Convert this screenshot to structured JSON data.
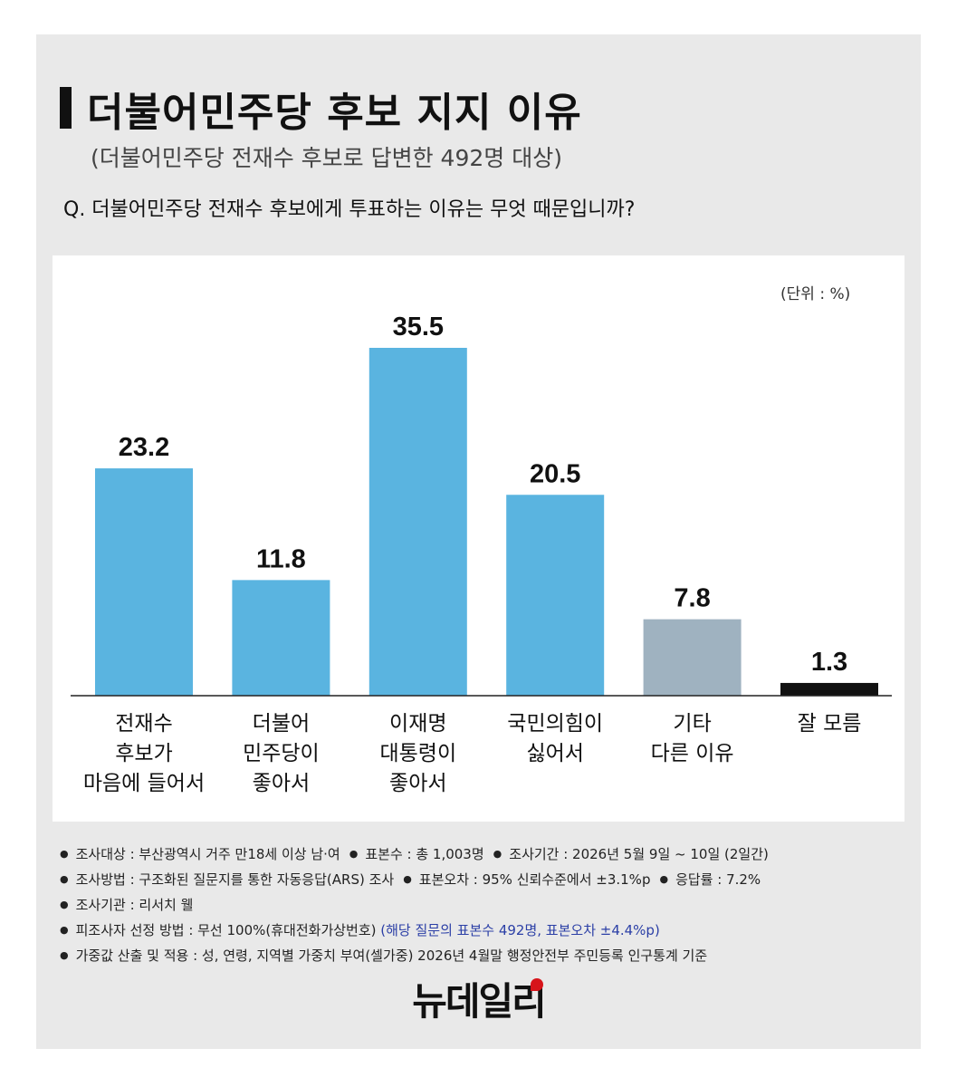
{
  "title": "더불어민주당 후보 지지 이유",
  "subtitle": "(더불어민주당 전재수 후보로 답변한 492명 대상)",
  "question": "Q. 더불어민주당 전재수 후보에게 투표하는 이유는 무엇 때문입니까?",
  "unit_label": "(단위 : %)",
  "chart_data": {
    "type": "bar",
    "title": "더불어민주당 후보 지지 이유",
    "categories": [
      [
        "전재수",
        "후보가",
        "마음에 들어서"
      ],
      [
        "더불어",
        "민주당이",
        "좋아서"
      ],
      [
        "이재명",
        "대통령이",
        "좋아서"
      ],
      [
        "국민의힘이",
        "싫어서"
      ],
      [
        "기타",
        "다른 이유"
      ],
      [
        "잘 모름"
      ]
    ],
    "values": [
      23.2,
      11.8,
      35.5,
      20.5,
      7.8,
      1.3
    ],
    "value_labels": [
      "23.2",
      "11.8",
      "35.5",
      "20.5",
      "7.8",
      "1.3"
    ],
    "colors": [
      "#5ab4e0",
      "#5ab4e0",
      "#5ab4e0",
      "#5ab4e0",
      "#9fb2c0",
      "#111111"
    ],
    "ylim": [
      0,
      35.5
    ],
    "grid": false,
    "legend": "none",
    "xlabel": "",
    "ylabel": ""
  },
  "notes": [
    [
      {
        "text": "조사대상 : 부산광역시 거주 만18세 이상 남·여"
      },
      {
        "text": "표본수 : 총 1,003명"
      },
      {
        "text": "조사기간 : 2026년 5월 9일 ~ 10일 (2일간)"
      }
    ],
    [
      {
        "text": "조사방법 : 구조화된 질문지를 통한 자동응답(ARS) 조사"
      },
      {
        "text": "표본오차 : 95% 신뢰수준에서 ±3.1%p"
      },
      {
        "text": "응답률 : 7.2%"
      }
    ],
    [
      {
        "text": "조사기관 : 리서치 웰"
      }
    ],
    [
      {
        "text": "피조사자 선정 방법 : 무선 100%(휴대전화가상번호)",
        "highlight": "(해당 질문의 표본수 492명, 표본오차 ±4.4%p)"
      }
    ],
    [
      {
        "text": "가중값 산출 및 적용 : 성, 연령, 지역별 가중치 부여(셀가중) 2026년 4월말 행정안전부 주민등록 인구통계 기준"
      }
    ]
  ],
  "logo": "뉴데일리",
  "colors": {
    "background": "#e9e9e9",
    "panel": "#ffffff",
    "bar": "#5ab4e0",
    "bar_other": "#9fb2c0",
    "bar_unknown": "#111111",
    "highlight_text": "#2b3fa6",
    "logo_accent": "#d7141a"
  }
}
